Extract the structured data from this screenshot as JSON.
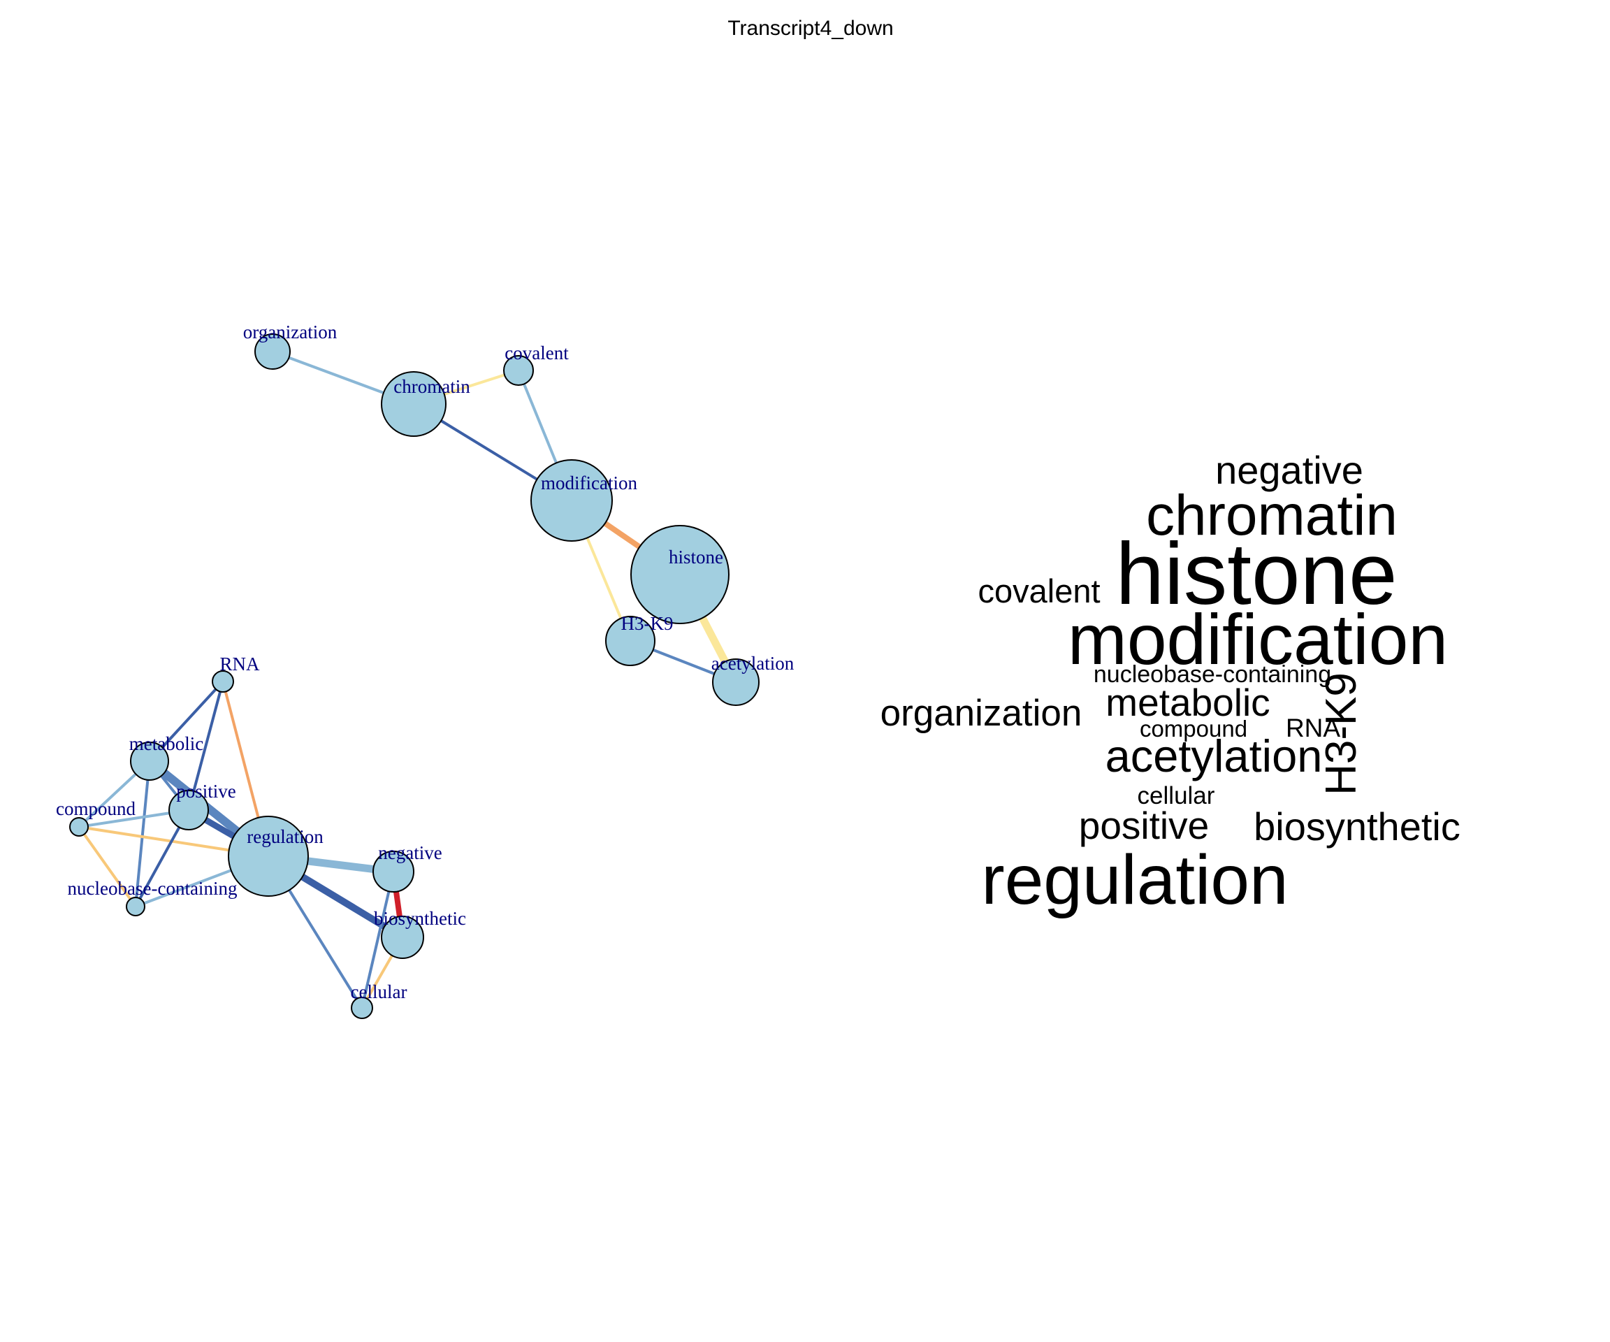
{
  "title": "Transcript4_down",
  "colors": {
    "node_fill": "#a2cfe0",
    "node_label": "#00007f",
    "dark_blue": "#3b5fa6",
    "mid_blue": "#5b86bf",
    "light_blue": "#8ab7d6",
    "yellow": "#fbe79a",
    "light_orange": "#f8c879",
    "orange": "#f3a365",
    "red": "#d0202a"
  },
  "network": {
    "nodes": [
      {
        "id": "organization",
        "label": "organization"
      },
      {
        "id": "covalent",
        "label": "covalent"
      },
      {
        "id": "chromatin",
        "label": "chromatin"
      },
      {
        "id": "modification",
        "label": "modification"
      },
      {
        "id": "histone",
        "label": "histone"
      },
      {
        "id": "h3k9",
        "label": "H3-K9"
      },
      {
        "id": "acetylation",
        "label": "acetylation"
      },
      {
        "id": "rna",
        "label": "RNA"
      },
      {
        "id": "metabolic",
        "label": "metabolic"
      },
      {
        "id": "compound",
        "label": "compound"
      },
      {
        "id": "positive",
        "label": "positive"
      },
      {
        "id": "regulation",
        "label": "regulation"
      },
      {
        "id": "negative",
        "label": "negative"
      },
      {
        "id": "nucleobase",
        "label": "nucleobase-containing"
      },
      {
        "id": "biosynthetic",
        "label": "biosynthetic"
      },
      {
        "id": "cellular",
        "label": "cellular"
      }
    ],
    "edges": [
      {
        "source": "organization",
        "target": "chromatin",
        "color": "light_blue"
      },
      {
        "source": "chromatin",
        "target": "covalent",
        "color": "yellow"
      },
      {
        "source": "chromatin",
        "target": "modification",
        "color": "dark_blue"
      },
      {
        "source": "covalent",
        "target": "modification",
        "color": "light_blue"
      },
      {
        "source": "modification",
        "target": "histone",
        "color": "orange"
      },
      {
        "source": "modification",
        "target": "h3k9",
        "color": "yellow"
      },
      {
        "source": "histone",
        "target": "acetylation",
        "color": "yellow"
      },
      {
        "source": "h3k9",
        "target": "acetylation",
        "color": "mid_blue"
      },
      {
        "source": "rna",
        "target": "metabolic",
        "color": "dark_blue"
      },
      {
        "source": "rna",
        "target": "positive",
        "color": "dark_blue"
      },
      {
        "source": "rna",
        "target": "regulation",
        "color": "orange"
      },
      {
        "source": "metabolic",
        "target": "compound",
        "color": "light_blue"
      },
      {
        "source": "metabolic",
        "target": "nucleobase",
        "color": "mid_blue"
      },
      {
        "source": "metabolic",
        "target": "positive",
        "color": "mid_blue"
      },
      {
        "source": "metabolic",
        "target": "regulation",
        "color": "mid_blue"
      },
      {
        "source": "compound",
        "target": "positive",
        "color": "light_blue"
      },
      {
        "source": "compound",
        "target": "regulation",
        "color": "light_orange"
      },
      {
        "source": "compound",
        "target": "nucleobase",
        "color": "light_orange"
      },
      {
        "source": "positive",
        "target": "nucleobase",
        "color": "dark_blue"
      },
      {
        "source": "positive",
        "target": "regulation",
        "color": "dark_blue"
      },
      {
        "source": "nucleobase",
        "target": "regulation",
        "color": "light_blue"
      },
      {
        "source": "regulation",
        "target": "negative",
        "color": "light_blue"
      },
      {
        "source": "regulation",
        "target": "biosynthetic",
        "color": "dark_blue"
      },
      {
        "source": "regulation",
        "target": "cellular",
        "color": "mid_blue"
      },
      {
        "source": "negative",
        "target": "biosynthetic",
        "color": "red"
      },
      {
        "source": "negative",
        "target": "cellular",
        "color": "mid_blue"
      },
      {
        "source": "biosynthetic",
        "target": "cellular",
        "color": "light_orange"
      }
    ]
  },
  "word_cloud": [
    {
      "id": "negative",
      "text": "negative"
    },
    {
      "id": "chromatin",
      "text": "chromatin"
    },
    {
      "id": "covalent",
      "text": "covalent"
    },
    {
      "id": "histone",
      "text": "histone"
    },
    {
      "id": "modification",
      "text": "modification"
    },
    {
      "id": "nucleobase",
      "text": "nucleobase-containing"
    },
    {
      "id": "organization",
      "text": "organization"
    },
    {
      "id": "metabolic",
      "text": "metabolic"
    },
    {
      "id": "compound",
      "text": "compound"
    },
    {
      "id": "rna",
      "text": "RNA"
    },
    {
      "id": "h3k9",
      "text": "H3-K9"
    },
    {
      "id": "acetylation",
      "text": "acetylation"
    },
    {
      "id": "cellular",
      "text": "cellular"
    },
    {
      "id": "positive",
      "text": "positive"
    },
    {
      "id": "biosynthetic",
      "text": "biosynthetic"
    },
    {
      "id": "regulation",
      "text": "regulation"
    }
  ]
}
